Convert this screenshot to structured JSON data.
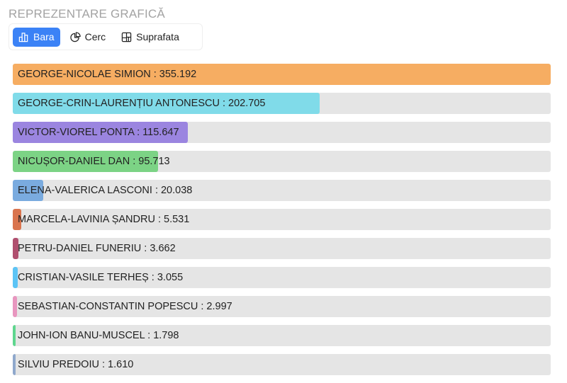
{
  "title": "REPREZENTARE GRAFICĂ",
  "tabs": [
    {
      "label": "Bara",
      "icon": "bar-chart-icon",
      "active": true
    },
    {
      "label": "Cerc",
      "icon": "pie-chart-icon",
      "active": false
    },
    {
      "label": "Suprafata",
      "icon": "treemap-icon",
      "active": false
    }
  ],
  "chart_data": {
    "type": "bar",
    "orientation": "horizontal",
    "categories": [
      "GEORGE-NICOLAE SIMION",
      "GEORGE-CRIN-LAURENȚIU ANTONESCU",
      "VICTOR-VIOREL PONTA",
      "NICUȘOR-DANIEL DAN",
      "ELENA-VALERICA LASCONI",
      "MARCELA-LAVINIA ȘANDRU",
      "PETRU-DANIEL FUNERIU",
      "CRISTIAN-VASILE TERHEȘ",
      "SEBASTIAN-CONSTANTIN POPESCU",
      "JOHN-ION BANU-MUSCEL",
      "SILVIU PREDOIU"
    ],
    "value_labels": [
      "355.192",
      "202.705",
      "115.647",
      "95.713",
      "20.038",
      "5.531",
      "3.662",
      "3.055",
      "2.997",
      "1.798",
      "1.610"
    ],
    "values": [
      355192,
      202705,
      115647,
      95713,
      20038,
      5531,
      3662,
      3055,
      2997,
      1798,
      1610
    ],
    "colors": [
      "#f6ad62",
      "#80dbe9",
      "#9b85e0",
      "#7cd385",
      "#7aabdf",
      "#d9744e",
      "#b0506f",
      "#5cc4f5",
      "#e896bf",
      "#5ed68e",
      "#8fa8cc"
    ],
    "xlim": [
      0,
      355192
    ]
  }
}
